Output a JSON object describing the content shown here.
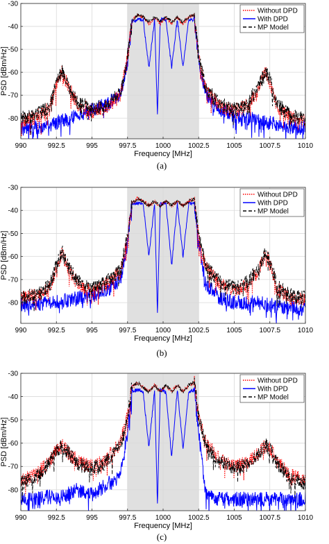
{
  "chart_data": [
    {
      "type": "line",
      "caption": "(a)",
      "xlabel": "Frequency [MHz]",
      "ylabel": "PSD [dBm/Hz]",
      "xlim": [
        990,
        1010
      ],
      "ylim": [
        -89,
        -30
      ],
      "xticks": [
        "990",
        "992.5",
        "995",
        "997.5",
        "1000",
        "1002.5",
        "1005",
        "1007.5",
        "1010"
      ],
      "yticks": [
        "-30",
        "-40",
        "-50",
        "-60",
        "-70",
        "-80"
      ],
      "grid": true,
      "legend_position": "top-right",
      "shaded_band": [
        997.5,
        1002.5
      ],
      "series": [
        {
          "name": "Without DPD",
          "color": "#ff0000",
          "style": "dotted",
          "x": [
            990,
            991,
            992,
            992.5,
            992.9,
            993.3,
            994,
            995,
            996,
            997,
            997.5,
            997.8,
            998.2,
            998.6,
            999.0,
            999.4,
            999.8,
            1000.2,
            1000.6,
            1001.0,
            1001.4,
            1001.8,
            1002.2,
            1002.5,
            1003,
            1004,
            1005,
            1006,
            1006.8,
            1007.2,
            1007.6,
            1008,
            1009,
            1010
          ],
          "y": [
            -81,
            -80,
            -76,
            -66,
            -59,
            -66,
            -74,
            -77,
            -75,
            -70,
            -54,
            -38,
            -35,
            -36,
            -39,
            -36,
            -39,
            -36,
            -39,
            -36,
            -39,
            -36,
            -35,
            -54,
            -68,
            -75,
            -77,
            -74,
            -66,
            -59,
            -66,
            -75,
            -80,
            -81
          ]
        },
        {
          "name": "With DPD",
          "color": "#0000ff",
          "style": "solid",
          "x": [
            990,
            991,
            992,
            992.5,
            992.9,
            993.3,
            994,
            995,
            996,
            997,
            997.5,
            997.8,
            998.2,
            998.6,
            999.0,
            999.4,
            999.6,
            999.8,
            1000.2,
            1000.6,
            1001.0,
            1001.4,
            1001.8,
            1002.2,
            1002.5,
            1003,
            1004,
            1005,
            1006,
            1006.8,
            1007.2,
            1007.6,
            1008,
            1009,
            1010
          ],
          "y": [
            -84,
            -84,
            -83,
            -82,
            -81,
            -80,
            -79,
            -76,
            -74,
            -70,
            -55,
            -38,
            -37,
            -37,
            -58,
            -37,
            -78,
            -37,
            -37,
            -58,
            -37,
            -58,
            -37,
            -37,
            -55,
            -70,
            -76,
            -79,
            -80,
            -81,
            -82,
            -82,
            -83,
            -84,
            -84
          ]
        },
        {
          "name": "MP Model",
          "color": "#000000",
          "style": "dashed",
          "x": [
            990,
            991,
            992,
            992.5,
            992.9,
            993.3,
            994,
            995,
            996,
            997,
            997.5,
            997.8,
            998.2,
            998.6,
            999.0,
            999.4,
            999.8,
            1000.2,
            1000.6,
            1001.0,
            1001.4,
            1001.8,
            1002.2,
            1002.5,
            1003,
            1004,
            1005,
            1006,
            1006.8,
            1007.2,
            1007.6,
            1008,
            1009,
            1010
          ],
          "y": [
            -80,
            -79,
            -75,
            -65,
            -59,
            -65,
            -73,
            -76,
            -74,
            -69,
            -53,
            -38,
            -35,
            -36,
            -38,
            -36,
            -38,
            -36,
            -38,
            -36,
            -38,
            -36,
            -35,
            -53,
            -67,
            -74,
            -76,
            -73,
            -65,
            -59,
            -65,
            -74,
            -79,
            -80
          ]
        }
      ]
    },
    {
      "type": "line",
      "caption": "(b)",
      "xlabel": "Frequency [MHz]",
      "ylabel": "PSD [dBm/Hz]",
      "xlim": [
        990,
        1010
      ],
      "ylim": [
        -89,
        -30
      ],
      "xticks": [
        "990",
        "992.5",
        "995",
        "997.5",
        "1000",
        "1002.5",
        "1005",
        "1007.5",
        "1010"
      ],
      "yticks": [
        "-30",
        "-40",
        "-50",
        "-60",
        "-70",
        "-80"
      ],
      "grid": true,
      "legend_position": "top-right",
      "shaded_band": [
        997.5,
        1002.5
      ],
      "series": [
        {
          "name": "Without DPD",
          "color": "#ff0000",
          "style": "dotted",
          "x": [
            990,
            991,
            992,
            992.5,
            992.9,
            993.3,
            994,
            995,
            996,
            997,
            997.5,
            997.8,
            998.2,
            998.6,
            999.0,
            999.4,
            999.8,
            1000.2,
            1000.6,
            1001.0,
            1001.4,
            1001.8,
            1002.2,
            1002.5,
            1003,
            1004,
            1005,
            1006,
            1006.8,
            1007.2,
            1007.6,
            1008,
            1009,
            1010
          ],
          "y": [
            -78,
            -77,
            -74,
            -65,
            -58,
            -65,
            -72,
            -75,
            -72,
            -67,
            -52,
            -37,
            -35,
            -36,
            -38,
            -36,
            -38,
            -36,
            -38,
            -36,
            -38,
            -36,
            -35,
            -52,
            -65,
            -72,
            -75,
            -72,
            -65,
            -58,
            -65,
            -74,
            -78,
            -79
          ]
        },
        {
          "name": "With DPD",
          "color": "#0000ff",
          "style": "solid",
          "x": [
            990,
            991,
            992,
            992.5,
            992.9,
            993.3,
            994,
            995,
            996,
            997,
            997.5,
            997.8,
            998.2,
            998.6,
            999.0,
            999.4,
            999.6,
            999.8,
            1000.2,
            1000.6,
            1001.0,
            1001.4,
            1001.8,
            1002.2,
            1002.5,
            1003,
            1004,
            1005,
            1006,
            1006.8,
            1007.2,
            1007.6,
            1008,
            1009,
            1010
          ],
          "y": [
            -81,
            -81,
            -80,
            -80,
            -79,
            -79,
            -78,
            -77,
            -75,
            -70,
            -54,
            -37,
            -37,
            -37,
            -60,
            -37,
            -84,
            -37,
            -37,
            -64,
            -37,
            -60,
            -37,
            -37,
            -54,
            -72,
            -78,
            -80,
            -80,
            -80,
            -81,
            -81,
            -82,
            -82,
            -83
          ]
        },
        {
          "name": "MP Model",
          "color": "#000000",
          "style": "dashed",
          "x": [
            990,
            991,
            992,
            992.5,
            992.9,
            993.3,
            994,
            995,
            996,
            997,
            997.5,
            997.8,
            998.2,
            998.6,
            999.0,
            999.4,
            999.8,
            1000.2,
            1000.6,
            1001.0,
            1001.4,
            1001.8,
            1002.2,
            1002.5,
            1003,
            1004,
            1005,
            1006,
            1006.8,
            1007.2,
            1007.6,
            1008,
            1009,
            1010
          ],
          "y": [
            -78,
            -77,
            -73,
            -64,
            -58,
            -64,
            -71,
            -74,
            -71,
            -66,
            -51,
            -37,
            -35,
            -36,
            -38,
            -36,
            -38,
            -36,
            -38,
            -36,
            -38,
            -36,
            -35,
            -51,
            -64,
            -71,
            -74,
            -71,
            -64,
            -58,
            -64,
            -73,
            -77,
            -78
          ]
        }
      ]
    },
    {
      "type": "line",
      "caption": "(c)",
      "xlabel": "Frequency [MHz]",
      "ylabel": "PSD [dBm/Hz]",
      "xlim": [
        990,
        1010
      ],
      "ylim": [
        -89,
        -30
      ],
      "xticks": [
        "990",
        "992.5",
        "995",
        "997.5",
        "1000",
        "1002.5",
        "1005",
        "1007.5",
        "1010"
      ],
      "yticks": [
        "-30",
        "-40",
        "-50",
        "-60",
        "-70",
        "-80"
      ],
      "grid": true,
      "legend_position": "top-right",
      "shaded_band": [
        997.5,
        1002.5
      ],
      "series": [
        {
          "name": "Without DPD",
          "color": "#ff0000",
          "style": "dotted",
          "x": [
            990,
            991,
            992,
            992.5,
            992.9,
            993.3,
            994,
            995,
            996,
            997,
            997.5,
            997.8,
            998.2,
            998.6,
            999.0,
            999.4,
            999.8,
            1000.2,
            1000.6,
            1001.0,
            1001.4,
            1001.8,
            1002.2,
            1002.5,
            1003,
            1004,
            1005,
            1006,
            1006.8,
            1007.2,
            1007.6,
            1008,
            1009,
            1010
          ],
          "y": [
            -76,
            -74,
            -68,
            -63,
            -61,
            -64,
            -68,
            -70,
            -67,
            -60,
            -48,
            -36,
            -34,
            -36,
            -38,
            -35,
            -38,
            -35,
            -38,
            -35,
            -38,
            -35,
            -34,
            -48,
            -60,
            -67,
            -70,
            -68,
            -64,
            -61,
            -63,
            -68,
            -74,
            -76
          ]
        },
        {
          "name": "With DPD",
          "color": "#0000ff",
          "style": "solid",
          "x": [
            990,
            991,
            992,
            992.5,
            992.9,
            993.3,
            994,
            995,
            996,
            997,
            997.5,
            997.8,
            998.2,
            998.6,
            999.0,
            999.4,
            999.6,
            999.8,
            1000.2,
            1000.6,
            1001.0,
            1001.4,
            1001.8,
            1002.2,
            1002.5,
            1003,
            1004,
            1005,
            1006,
            1006.8,
            1007.2,
            1007.6,
            1008,
            1009,
            1010
          ],
          "y": [
            -84,
            -84,
            -83,
            -83,
            -83,
            -82,
            -80,
            -82,
            -78,
            -74,
            -56,
            -38,
            -37,
            -38,
            -62,
            -37,
            -86,
            -37,
            -38,
            -66,
            -37,
            -62,
            -38,
            -37,
            -56,
            -82,
            -84,
            -84,
            -84,
            -84,
            -84,
            -84,
            -84,
            -84,
            -84
          ]
        },
        {
          "name": "MP Model",
          "color": "#000000",
          "style": "dashed",
          "x": [
            990,
            991,
            992,
            992.5,
            992.9,
            993.3,
            994,
            995,
            996,
            997,
            997.5,
            997.8,
            998.2,
            998.6,
            999.0,
            999.4,
            999.8,
            1000.2,
            1000.6,
            1001.0,
            1001.4,
            1001.8,
            1002.2,
            1002.5,
            1003,
            1004,
            1005,
            1006,
            1006.8,
            1007.2,
            1007.6,
            1008,
            1009,
            1010
          ],
          "y": [
            -77,
            -75,
            -69,
            -63,
            -61,
            -64,
            -69,
            -71,
            -68,
            -61,
            -49,
            -36,
            -34,
            -36,
            -38,
            -35,
            -38,
            -35,
            -38,
            -35,
            -38,
            -35,
            -34,
            -49,
            -61,
            -68,
            -71,
            -69,
            -64,
            -61,
            -63,
            -69,
            -75,
            -77
          ]
        }
      ]
    }
  ]
}
